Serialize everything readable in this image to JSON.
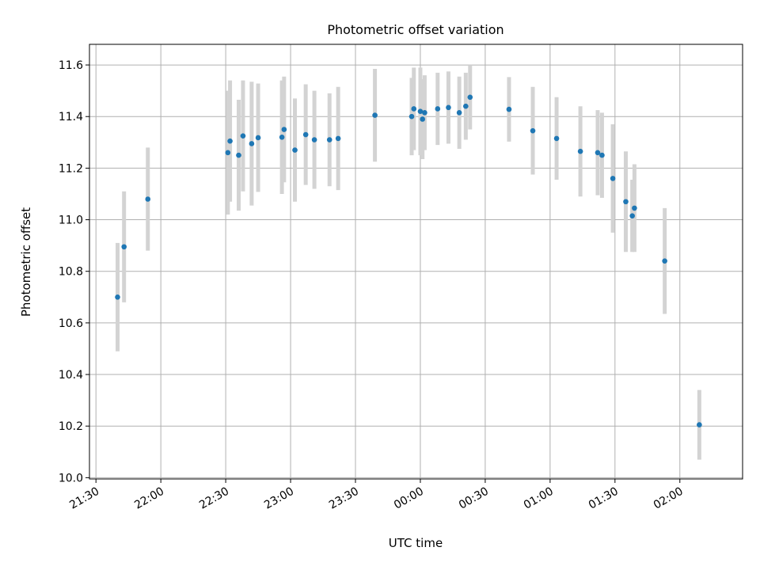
{
  "chart_data": {
    "type": "scatter",
    "title": "Photometric offset variation",
    "xlabel": "UTC time",
    "ylabel": "Photometric offset",
    "xlim": [
      "21:27",
      "02:29"
    ],
    "ylim": [
      9.995,
      11.68
    ],
    "x_ticks": [
      "21:30",
      "22:00",
      "22:30",
      "23:00",
      "23:30",
      "00:00",
      "00:30",
      "01:00",
      "01:30",
      "02:00"
    ],
    "y_ticks": [
      "10.0",
      "10.2",
      "10.4",
      "10.6",
      "10.8",
      "11.0",
      "11.2",
      "11.4",
      "11.6"
    ],
    "grid": true,
    "colors": {
      "point": "#1f77b4",
      "errorbar": "#d3d3d3",
      "grid": "#b0b0b0"
    },
    "points": [
      {
        "t": "21:40",
        "y": 10.7,
        "err": 0.21
      },
      {
        "t": "21:43",
        "y": 10.895,
        "err": 0.215
      },
      {
        "t": "21:54",
        "y": 11.08,
        "err": 0.2
      },
      {
        "t": "22:31",
        "y": 11.26,
        "err": 0.24
      },
      {
        "t": "22:32",
        "y": 11.305,
        "err": 0.235
      },
      {
        "t": "22:36",
        "y": 11.25,
        "err": 0.215
      },
      {
        "t": "22:38",
        "y": 11.325,
        "err": 0.215
      },
      {
        "t": "22:42",
        "y": 11.295,
        "err": 0.24
      },
      {
        "t": "22:45",
        "y": 11.318,
        "err": 0.21
      },
      {
        "t": "22:56",
        "y": 11.32,
        "err": 0.22
      },
      {
        "t": "22:57",
        "y": 11.35,
        "err": 0.205
      },
      {
        "t": "23:02",
        "y": 11.27,
        "err": 0.2
      },
      {
        "t": "23:07",
        "y": 11.33,
        "err": 0.195
      },
      {
        "t": "23:11",
        "y": 11.31,
        "err": 0.19
      },
      {
        "t": "23:18",
        "y": 11.31,
        "err": 0.18
      },
      {
        "t": "23:22",
        "y": 11.315,
        "err": 0.2
      },
      {
        "t": "23:39",
        "y": 11.405,
        "err": 0.18
      },
      {
        "t": "23:56",
        "y": 11.4,
        "err": 0.15
      },
      {
        "t": "23:57",
        "y": 11.43,
        "err": 0.16
      },
      {
        "t": "00:00",
        "y": 11.42,
        "err": 0.17
      },
      {
        "t": "00:01",
        "y": 11.39,
        "err": 0.155
      },
      {
        "t": "00:02",
        "y": 11.415,
        "err": 0.145
      },
      {
        "t": "00:08",
        "y": 11.43,
        "err": 0.14
      },
      {
        "t": "00:13",
        "y": 11.435,
        "err": 0.14
      },
      {
        "t": "00:18",
        "y": 11.415,
        "err": 0.14
      },
      {
        "t": "00:21",
        "y": 11.44,
        "err": 0.13
      },
      {
        "t": "00:23",
        "y": 11.475,
        "err": 0.125
      },
      {
        "t": "00:41",
        "y": 11.428,
        "err": 0.125
      },
      {
        "t": "00:52",
        "y": 11.345,
        "err": 0.17
      },
      {
        "t": "01:03",
        "y": 11.315,
        "err": 0.16
      },
      {
        "t": "01:14",
        "y": 11.265,
        "err": 0.175
      },
      {
        "t": "01:22",
        "y": 11.26,
        "err": 0.165
      },
      {
        "t": "01:24",
        "y": 11.25,
        "err": 0.165
      },
      {
        "t": "01:29",
        "y": 11.16,
        "err": 0.21
      },
      {
        "t": "01:35",
        "y": 11.07,
        "err": 0.195
      },
      {
        "t": "01:38",
        "y": 11.015,
        "err": 0.14
      },
      {
        "t": "01:39",
        "y": 11.045,
        "err": 0.17
      },
      {
        "t": "01:53",
        "y": 10.84,
        "err": 0.205
      },
      {
        "t": "02:09",
        "y": 10.205,
        "err": 0.135
      }
    ]
  }
}
